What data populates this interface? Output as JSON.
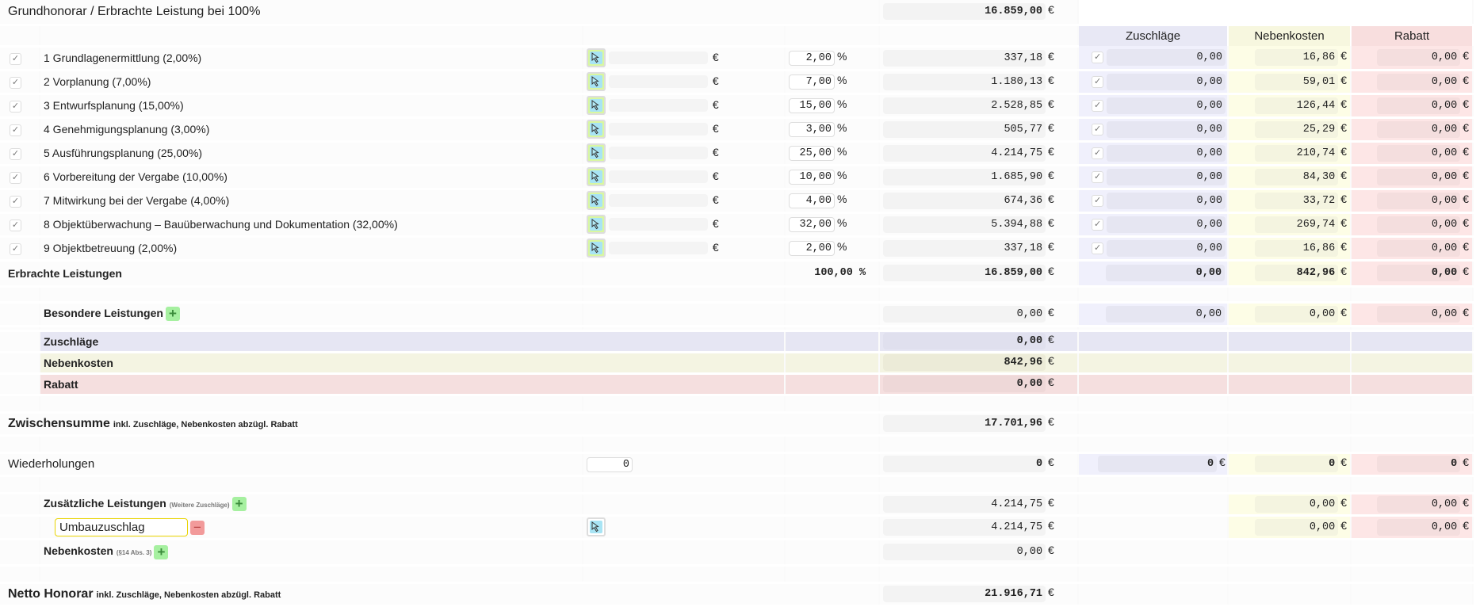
{
  "title": "Grundhonorar / Erbrachte Leistung bei 100%",
  "title_amount": "16.859,00",
  "currency": "€",
  "percent": "%",
  "headers": {
    "zuschlaege": "Zuschläge",
    "nebenkosten": "Nebenkosten",
    "rabatt": "Rabatt"
  },
  "colors": {
    "zuschlaege": "#f0f0fc",
    "nebenkosten": "#fdfde6",
    "rabatt": "#fde6e6",
    "plus": "#a6f0a0",
    "minus": "#f29a9a"
  },
  "phases": [
    {
      "label": "1 Grundlagenermittlung (2,00%)",
      "checked": true,
      "pct": "2,00",
      "amount": "337,18",
      "zuschlag": "0,00",
      "nebenkosten": "16,86",
      "rabatt": "0,00"
    },
    {
      "label": "2 Vorplanung (7,00%)",
      "checked": true,
      "pct": "7,00",
      "amount": "1.180,13",
      "zuschlag": "0,00",
      "nebenkosten": "59,01",
      "rabatt": "0,00"
    },
    {
      "label": "3 Entwurfsplanung (15,00%)",
      "checked": true,
      "pct": "15,00",
      "amount": "2.528,85",
      "zuschlag": "0,00",
      "nebenkosten": "126,44",
      "rabatt": "0,00"
    },
    {
      "label": "4 Genehmigungsplanung (3,00%)",
      "checked": true,
      "pct": "3,00",
      "amount": "505,77",
      "zuschlag": "0,00",
      "nebenkosten": "25,29",
      "rabatt": "0,00"
    },
    {
      "label": "5 Ausführungsplanung (25,00%)",
      "checked": true,
      "pct": "25,00",
      "amount": "4.214,75",
      "zuschlag": "0,00",
      "nebenkosten": "210,74",
      "rabatt": "0,00"
    },
    {
      "label": "6 Vorbereitung der Vergabe (10,00%)",
      "checked": true,
      "pct": "10,00",
      "amount": "1.685,90",
      "zuschlag": "0,00",
      "nebenkosten": "84,30",
      "rabatt": "0,00"
    },
    {
      "label": "7 Mitwirkung bei der Vergabe (4,00%)",
      "checked": true,
      "pct": "4,00",
      "amount": "674,36",
      "zuschlag": "0,00",
      "nebenkosten": "33,72",
      "rabatt": "0,00"
    },
    {
      "label": "8 Objektüberwachung – Bauüberwachung und Dokumentation (32,00%)",
      "checked": true,
      "pct": "32,00",
      "amount": "5.394,88",
      "zuschlag": "0,00",
      "nebenkosten": "269,74",
      "rabatt": "0,00"
    },
    {
      "label": "9 Objektbetreuung (2,00%)",
      "checked": true,
      "pct": "2,00",
      "amount": "337,18",
      "zuschlag": "0,00",
      "nebenkosten": "16,86",
      "rabatt": "0,00"
    }
  ],
  "erbracht": {
    "label": "Erbrachte Leistungen",
    "pct": "100,00",
    "amount": "16.859,00",
    "zuschlag": "0,00",
    "nebenkosten": "842,96",
    "rabatt": "0,00"
  },
  "besondere": {
    "label": "Besondere Leistungen",
    "amount": "0,00",
    "zuschlag": "0,00",
    "nebenkosten": "0,00",
    "rabatt": "0,00"
  },
  "summary": {
    "zuschlaege_label": "Zuschläge",
    "zuschlaege": "0,00",
    "nebenkosten_label": "Nebenkosten",
    "nebenkosten": "842,96",
    "rabatt_label": "Rabatt",
    "rabatt": "0,00"
  },
  "zwischensumme": {
    "label": "Zwischensumme",
    "note": "inkl. Zuschläge, Nebenkosten abzügl. Rabatt",
    "amount": "17.701,96"
  },
  "wiederholungen": {
    "label": "Wiederholungen",
    "count": "0",
    "amount": "0",
    "zuschlag": "0",
    "nebenkosten": "0",
    "rabatt": "0"
  },
  "zusaetzlich": {
    "label": "Zusätzliche Leistungen",
    "note": "(Weitere Zuschläge)",
    "amount": "4.214,75",
    "nebenkosten": "0,00",
    "rabatt": "0,00"
  },
  "umbau": {
    "value": "Umbauzuschlag",
    "amount": "4.214,75",
    "nebenkosten": "0,00",
    "rabatt": "0,00"
  },
  "nebenkosten14": {
    "label": "Nebenkosten",
    "note": "(§14 Abs. 3)",
    "amount": "0,00"
  },
  "netto": {
    "label": "Netto Honorar",
    "note": "inkl. Zuschläge, Nebenkosten abzügl. Rabatt",
    "amount": "21.916,71"
  }
}
